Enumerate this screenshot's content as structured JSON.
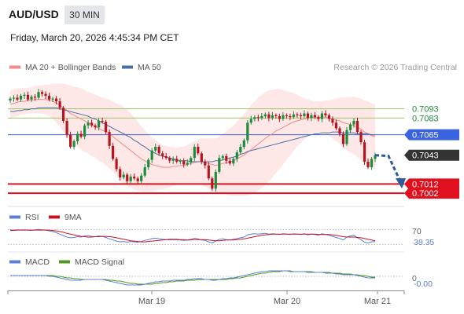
{
  "header": {
    "pair": "AUD/USD",
    "timeframe": "30 MIN",
    "datetime": "Friday, March 20, 2026 4:45:34 PM CET"
  },
  "legend": {
    "ma20_bb": "MA 20 + Bollinger Bands",
    "ma50": "MA 50",
    "credit": "Research © 2026 Trading Central",
    "rsi": "RSI",
    "rsi_ma": "9MA",
    "macd": "MACD",
    "macd_signal": "MACD Signal"
  },
  "colors": {
    "bullish": "#1e8c3c",
    "bearish": "#b8141e",
    "ma20": "#f28a8a",
    "bb_fill": "#fde3e3",
    "ma50": "#4a6fa0",
    "resistance": "#9bc46a",
    "current": "#3a63e0",
    "support": "#e0101e",
    "arrow": "#2d5a9b",
    "rsi": "#5b7fd6",
    "rsi_ma": "#cc1122",
    "macd": "#5b7fd6",
    "macd_signal": "#4e9a1e"
  },
  "chart_data": {
    "type": "candlestick",
    "x_ticks": [
      "Mar 19",
      "Mar 20",
      "Mar 21"
    ],
    "ylim": [
      0.6992,
      0.7118
    ],
    "price_levels": [
      {
        "value": 0.7093,
        "label": "0.7093",
        "kind": "resistance"
      },
      {
        "value": 0.7083,
        "label": "0.7083",
        "kind": "resistance"
      },
      {
        "value": 0.7065,
        "label": "0.7065",
        "kind": "current"
      },
      {
        "value": 0.7012,
        "label": "0.7012",
        "kind": "support"
      },
      {
        "value": 0.7002,
        "label": "0.7002",
        "kind": "support"
      }
    ],
    "last_price": {
      "value": 0.7043,
      "label": "0.7043"
    },
    "forecast_target": 0.7008,
    "candles_close": [
      0.7104,
      0.7105,
      0.7103,
      0.7107,
      0.7108,
      0.7103,
      0.7106,
      0.7105,
      0.7111,
      0.7109,
      0.7107,
      0.7103,
      0.7104,
      0.7101,
      0.7094,
      0.708,
      0.7065,
      0.7052,
      0.7058,
      0.7066,
      0.7063,
      0.7075,
      0.7078,
      0.7075,
      0.7073,
      0.708,
      0.7079,
      0.7068,
      0.7053,
      0.7039,
      0.7028,
      0.7019,
      0.7022,
      0.7015,
      0.702,
      0.7018,
      0.7015,
      0.7021,
      0.703,
      0.7038,
      0.7048,
      0.7052,
      0.7045,
      0.7042,
      0.704,
      0.7037,
      0.7039,
      0.7036,
      0.7037,
      0.7033,
      0.7035,
      0.704,
      0.7052,
      0.7045,
      0.7036,
      0.7032,
      0.7018,
      0.7007,
      0.7025,
      0.704,
      0.7042,
      0.7037,
      0.7034,
      0.7039,
      0.7046,
      0.7052,
      0.7059,
      0.7078,
      0.7082,
      0.7084,
      0.7083,
      0.7085,
      0.7087,
      0.7083,
      0.7086,
      0.7085,
      0.7082,
      0.7086,
      0.7085,
      0.7084,
      0.7087,
      0.7086,
      0.7085,
      0.7088,
      0.7083,
      0.7086,
      0.7084,
      0.7082,
      0.7088,
      0.7086,
      0.7082,
      0.7078,
      0.7072,
      0.7066,
      0.7055,
      0.707,
      0.7076,
      0.708,
      0.7068,
      0.7057,
      0.7036,
      0.703,
      0.7039,
      0.7043
    ],
    "ma20": [
      0.7098,
      0.7099,
      0.71,
      0.7101,
      0.7101,
      0.7102,
      0.7102,
      0.7103,
      0.7103,
      0.7103,
      0.7103,
      0.7102,
      0.7101,
      0.7099,
      0.7097,
      0.7094,
      0.7091,
      0.7088,
      0.7086,
      0.7084,
      0.7082,
      0.708,
      0.7078,
      0.7076,
      0.7074,
      0.7072,
      0.707,
      0.7068,
      0.7066,
      0.7063,
      0.706,
      0.7057,
      0.7054,
      0.7051,
      0.7048,
      0.7045,
      0.7042,
      0.7039,
      0.7037,
      0.7035,
      0.7033,
      0.7032,
      0.7031,
      0.703,
      0.703,
      0.703,
      0.7031,
      0.7031,
      0.7032,
      0.7032,
      0.7033,
      0.7034,
      0.7035,
      0.7036,
      0.7036,
      0.7035,
      0.7034,
      0.7033,
      0.7032,
      0.7033,
      0.7034,
      0.7035,
      0.7036,
      0.7037,
      0.7039,
      0.7041,
      0.7043,
      0.7046,
      0.7049,
      0.7052,
      0.7055,
      0.7058,
      0.7061,
      0.7064,
      0.7066,
      0.7069,
      0.7071,
      0.7073,
      0.7075,
      0.7077,
      0.7079,
      0.708,
      0.7081,
      0.7082,
      0.7083,
      0.7084,
      0.7084,
      0.7084,
      0.7084,
      0.7084,
      0.7083,
      0.7082,
      0.7081,
      0.708,
      0.7078,
      0.7077,
      0.7076,
      0.7075,
      0.7073,
      0.7071,
      0.7068,
      0.7066,
      0.7064,
      0.7063
    ],
    "ma50": [
      0.709,
      0.709,
      0.7091,
      0.7091,
      0.7092,
      0.7092,
      0.7093,
      0.7093,
      0.7094,
      0.7094,
      0.7094,
      0.7094,
      0.7094,
      0.7094,
      0.7093,
      0.7092,
      0.7091,
      0.709,
      0.7089,
      0.7088,
      0.7087,
      0.7086,
      0.7085,
      0.7083,
      0.7082,
      0.708,
      0.7078,
      0.7076,
      0.7074,
      0.7072,
      0.707,
      0.7068,
      0.7066,
      0.7064,
      0.7062,
      0.7059,
      0.7057,
      0.7054,
      0.7052,
      0.7049,
      0.7047,
      0.7045,
      0.7043,
      0.7042,
      0.7041,
      0.704,
      0.7039,
      0.7038,
      0.7037,
      0.7037,
      0.7037,
      0.7036,
      0.7036,
      0.7036,
      0.7036,
      0.7036,
      0.7036,
      0.7036,
      0.7037,
      0.7037,
      0.7038,
      0.7039,
      0.704,
      0.7041,
      0.7042,
      0.7044,
      0.7045,
      0.7047,
      0.7048,
      0.7049,
      0.705,
      0.7051,
      0.7052,
      0.7053,
      0.7054,
      0.7055,
      0.7056,
      0.7057,
      0.7058,
      0.7059,
      0.706,
      0.7061,
      0.7062,
      0.7063,
      0.7064,
      0.7065,
      0.7066,
      0.7066,
      0.7067,
      0.7067,
      0.7067,
      0.7068,
      0.7068,
      0.7068,
      0.7067,
      0.7067,
      0.7067,
      0.7067,
      0.7066,
      0.7066,
      0.7066,
      0.7066,
      0.7065,
      0.7065
    ],
    "bb_width": [
      0.0015,
      0.0015,
      0.0015,
      0.0014,
      0.0014,
      0.0014,
      0.0014,
      0.0015,
      0.0015,
      0.0015,
      0.0016,
      0.0017,
      0.0019,
      0.0021,
      0.0023,
      0.0026,
      0.0028,
      0.003,
      0.0031,
      0.0032,
      0.0033,
      0.0033,
      0.0033,
      0.0034,
      0.0034,
      0.0035,
      0.0035,
      0.0036,
      0.0037,
      0.0038,
      0.0039,
      0.004,
      0.0041,
      0.0041,
      0.004,
      0.0039,
      0.0037,
      0.0035,
      0.0033,
      0.0031,
      0.0029,
      0.0027,
      0.0025,
      0.0024,
      0.0023,
      0.0022,
      0.0021,
      0.002,
      0.002,
      0.002,
      0.0021,
      0.0022,
      0.0023,
      0.0024,
      0.0025,
      0.0026,
      0.0027,
      0.0028,
      0.0029,
      0.003,
      0.0032,
      0.0034,
      0.0036,
      0.0038,
      0.004,
      0.0042,
      0.0044,
      0.0046,
      0.0048,
      0.0049,
      0.005,
      0.005,
      0.005,
      0.0049,
      0.0047,
      0.0045,
      0.0043,
      0.004,
      0.0037,
      0.0034,
      0.0031,
      0.0028,
      0.0025,
      0.0022,
      0.002,
      0.0018,
      0.0017,
      0.0017,
      0.0017,
      0.0018,
      0.0019,
      0.0021,
      0.0023,
      0.0025,
      0.0027,
      0.0029,
      0.003,
      0.0031,
      0.0032,
      0.0033,
      0.0034,
      0.0035,
      0.0035,
      0.0035
    ],
    "rsi": {
      "level_label": "70",
      "value_label": "38.35",
      "ylim": [
        20,
        80
      ],
      "level": 70,
      "lower_level": 30,
      "values": [
        70,
        69,
        70,
        69,
        70,
        69,
        68,
        70,
        71,
        70,
        69,
        67,
        65,
        62,
        58,
        54,
        50,
        48,
        49,
        51,
        50,
        53,
        54,
        52,
        51,
        53,
        52,
        49,
        45,
        42,
        39,
        37,
        38,
        36,
        38,
        37,
        36,
        38,
        41,
        43,
        46,
        47,
        45,
        44,
        43,
        42,
        43,
        42,
        42,
        41,
        42,
        44,
        47,
        45,
        42,
        41,
        37,
        34,
        39,
        44,
        45,
        43,
        42,
        44,
        46,
        48,
        50,
        56,
        58,
        59,
        58,
        59,
        60,
        58,
        59,
        58,
        57,
        59,
        58,
        57,
        59,
        58,
        57,
        59,
        56,
        58,
        57,
        55,
        59,
        57,
        55,
        52,
        49,
        46,
        42,
        50,
        53,
        55,
        48,
        43,
        36,
        34,
        37,
        38
      ],
      "ma": [
        68,
        68,
        69,
        69,
        69,
        69,
        69,
        69,
        69,
        69,
        69,
        69,
        68,
        67,
        65,
        63,
        60,
        58,
        56,
        54,
        52,
        51,
        50,
        50,
        51,
        51,
        52,
        52,
        51,
        50,
        48,
        46,
        44,
        42,
        40,
        39,
        38,
        37,
        37,
        38,
        39,
        40,
        41,
        42,
        43,
        44,
        44,
        44,
        43,
        43,
        42,
        42,
        43,
        43,
        43,
        43,
        42,
        41,
        40,
        40,
        41,
        42,
        42,
        42,
        43,
        44,
        45,
        47,
        49,
        51,
        53,
        55,
        56,
        57,
        58,
        58,
        58,
        58,
        58,
        58,
        58,
        58,
        58,
        58,
        58,
        58,
        58,
        57,
        57,
        57,
        57,
        56,
        55,
        53,
        51,
        50,
        50,
        50,
        49,
        48,
        46,
        44,
        42,
        40
      ]
    },
    "macd": {
      "value_label": "-0.00",
      "zero_label": "0",
      "ylim": [
        -0.0014,
        0.0008
      ],
      "macd": [
        0.0001,
        0.0001,
        0.0001,
        0.0001,
        0.0001,
        0.0001,
        0.0001,
        0.0001,
        0.0001,
        0.0001,
        0.0001,
        0.0,
        0.0,
        -0.0001,
        -0.0002,
        -0.0003,
        -0.0004,
        -0.0005,
        -0.0005,
        -0.0005,
        -0.0005,
        -0.0004,
        -0.0004,
        -0.0004,
        -0.0004,
        -0.0004,
        -0.0004,
        -0.0005,
        -0.0006,
        -0.0007,
        -0.0008,
        -0.0009,
        -0.001,
        -0.0011,
        -0.0011,
        -0.0011,
        -0.0011,
        -0.0011,
        -0.001,
        -0.0009,
        -0.0008,
        -0.0007,
        -0.0007,
        -0.0006,
        -0.0006,
        -0.0006,
        -0.0005,
        -0.0005,
        -0.0005,
        -0.0005,
        -0.0004,
        -0.0004,
        -0.0003,
        -0.0003,
        -0.0003,
        -0.0004,
        -0.0004,
        -0.0005,
        -0.0005,
        -0.0004,
        -0.0003,
        -0.0003,
        -0.0002,
        -0.0002,
        -0.0001,
        0.0,
        0.0001,
        0.0002,
        0.0003,
        0.0004,
        0.0005,
        0.0006,
        0.0006,
        0.0007,
        0.0007,
        0.0007,
        0.0007,
        0.0007,
        0.0007,
        0.0006,
        0.0006,
        0.0006,
        0.0006,
        0.0006,
        0.0005,
        0.0005,
        0.0005,
        0.0005,
        0.0005,
        0.0004,
        0.0004,
        0.0004,
        0.0003,
        0.0003,
        0.0002,
        0.0002,
        0.0002,
        0.0002,
        0.0001,
        0.0,
        -0.0001,
        -0.0002,
        -0.0002,
        -0.0002
      ],
      "signal": [
        0.0001,
        0.0001,
        0.0001,
        0.0001,
        0.0001,
        0.0001,
        0.0001,
        0.0001,
        0.0001,
        0.0001,
        0.0001,
        0.0001,
        0.0001,
        0.0,
        0.0,
        -0.0001,
        -0.0002,
        -0.0002,
        -0.0003,
        -0.0003,
        -0.0004,
        -0.0004,
        -0.0004,
        -0.0004,
        -0.0004,
        -0.0004,
        -0.0004,
        -0.0004,
        -0.0005,
        -0.0005,
        -0.0006,
        -0.0006,
        -0.0007,
        -0.0008,
        -0.0009,
        -0.0009,
        -0.001,
        -0.001,
        -0.001,
        -0.001,
        -0.001,
        -0.0009,
        -0.0009,
        -0.0008,
        -0.0008,
        -0.0007,
        -0.0007,
        -0.0006,
        -0.0006,
        -0.0006,
        -0.0005,
        -0.0005,
        -0.0005,
        -0.0004,
        -0.0004,
        -0.0004,
        -0.0004,
        -0.0004,
        -0.0004,
        -0.0004,
        -0.0004,
        -0.0004,
        -0.0003,
        -0.0003,
        -0.0002,
        -0.0002,
        -0.0001,
        0.0,
        0.0001,
        0.0002,
        0.0003,
        0.0004,
        0.0004,
        0.0005,
        0.0006,
        0.0006,
        0.0006,
        0.0007,
        0.0007,
        0.0007,
        0.0006,
        0.0006,
        0.0006,
        0.0006,
        0.0006,
        0.0006,
        0.0005,
        0.0005,
        0.0005,
        0.0005,
        0.0005,
        0.0004,
        0.0004,
        0.0004,
        0.0003,
        0.0003,
        0.0003,
        0.0002,
        0.0002,
        0.0001,
        0.0001,
        0.0,
        -0.0001,
        -0.0001
      ]
    }
  }
}
